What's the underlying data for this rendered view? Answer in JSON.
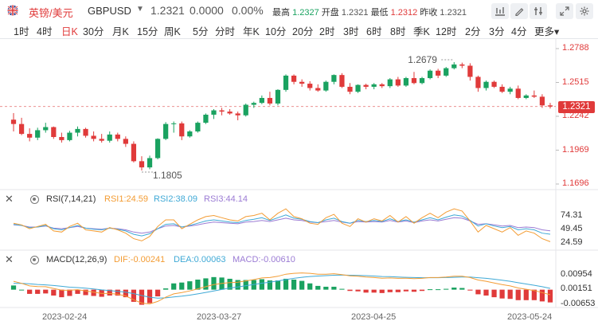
{
  "header": {
    "name": "英镑/美元",
    "code": "GBPUSD",
    "price": "1.2321",
    "change": "0.0000",
    "change_pct": "0.00%",
    "high_label": "最高",
    "high_value": "1.2327",
    "open_label": "开盘",
    "open_value": "1.2321",
    "low_label": "最低",
    "low_value": "1.2312",
    "prev_label": "昨收",
    "prev_value": "1.2321"
  },
  "tools": [
    "candle-type-icon",
    "draw-pen-icon",
    "compare-icon",
    "fullscreen-icon",
    "settings-icon"
  ],
  "periods": [
    "1时",
    "4时",
    "日K",
    "30分",
    "月K",
    "15分",
    "周K",
    "5分",
    "分时",
    "年K",
    "10分",
    "20分",
    "2时",
    "3时",
    "6时",
    "8时",
    "季K",
    "12时",
    "2分",
    "3分",
    "4分",
    "更多"
  ],
  "active_period": "日K",
  "price_axis": {
    "labels": [
      "1.2788",
      "1.2515",
      "1.2242",
      "1.1969",
      "1.1696"
    ],
    "current": "1.2321"
  },
  "annotations": {
    "high": "1.2679",
    "low": "1.1805"
  },
  "rsi": {
    "title": "RSI(7,14,21)",
    "rsi1": "RSI1:24.59",
    "rsi2": "RSI2:38.09",
    "rsi3": "RSI3:44.14",
    "axis": [
      "74.31",
      "49.45",
      "24.59"
    ]
  },
  "macd": {
    "title": "MACD(12,26,9)",
    "dif": "DIF:-0.00241",
    "dea": "DEA:0.00063",
    "macd": "MACD:-0.00610",
    "axis": [
      "0.00954",
      "0.00151",
      "-0.00653"
    ]
  },
  "dates": [
    "2023-02-24",
    "2023-03-27",
    "2023-04-25",
    "2023-05-24"
  ],
  "colors": {
    "up": "#e03a3a",
    "down": "#1aa260",
    "rsi1": "#f39c34",
    "rsi2": "#3fa9d6",
    "rsi3": "#9b7bd4",
    "dif": "#f39c34",
    "dea": "#3fa9d6"
  },
  "chart_data": {
    "type": "candlestick",
    "title": "",
    "xlabel": "",
    "ylabel": "",
    "ylim": [
      1.1696,
      1.2788
    ],
    "x_ticks": [
      "2023-02-24",
      "2023-03-27",
      "2023-04-25",
      "2023-05-24"
    ],
    "ohlc": [
      [
        1.2215,
        1.2268,
        1.212,
        1.218
      ],
      [
        1.218,
        1.223,
        1.209,
        1.21
      ],
      [
        1.21,
        1.2145,
        1.204,
        1.207
      ],
      [
        1.207,
        1.215,
        1.205,
        1.213
      ],
      [
        1.213,
        1.219,
        1.211,
        1.2155
      ],
      [
        1.2155,
        1.216,
        1.206,
        1.2075
      ],
      [
        1.2075,
        1.211,
        1.203,
        1.205
      ],
      [
        1.205,
        1.2125,
        1.204,
        1.211
      ],
      [
        1.211,
        1.216,
        1.208,
        1.214
      ],
      [
        1.214,
        1.215,
        1.207,
        1.2085
      ],
      [
        1.2085,
        1.212,
        1.204,
        1.206
      ],
      [
        1.206,
        1.21,
        1.203,
        1.2045
      ],
      [
        1.2045,
        1.212,
        1.203,
        1.2095
      ],
      [
        1.2095,
        1.211,
        1.204,
        1.206
      ],
      [
        1.206,
        1.208,
        1.1995,
        1.202
      ],
      [
        1.202,
        1.204,
        1.187,
        1.188
      ],
      [
        1.188,
        1.192,
        1.1805,
        1.183
      ],
      [
        1.183,
        1.1925,
        1.1815,
        1.1905
      ],
      [
        1.1905,
        1.2065,
        1.1895,
        1.206
      ],
      [
        1.206,
        1.2195,
        1.205,
        1.218
      ],
      [
        1.218,
        1.22,
        1.211,
        1.2185
      ],
      [
        1.2185,
        1.22,
        1.205,
        1.208
      ],
      [
        1.208,
        1.213,
        1.207,
        1.212
      ],
      [
        1.212,
        1.22,
        1.211,
        1.219
      ],
      [
        1.219,
        1.2265,
        1.218,
        1.2255
      ],
      [
        1.2255,
        1.23,
        1.222,
        1.229
      ],
      [
        1.229,
        1.231,
        1.225,
        1.228
      ],
      [
        1.228,
        1.23,
        1.2255,
        1.2265
      ],
      [
        1.2265,
        1.228,
        1.221,
        1.225
      ],
      [
        1.225,
        1.2345,
        1.224,
        1.2335
      ],
      [
        1.2335,
        1.236,
        1.231,
        1.235
      ],
      [
        1.235,
        1.241,
        1.234,
        1.239
      ],
      [
        1.239,
        1.244,
        1.233,
        1.2345
      ],
      [
        1.2345,
        1.246,
        1.233,
        1.2455
      ],
      [
        1.2455,
        1.258,
        1.244,
        1.257
      ],
      [
        1.257,
        1.258,
        1.25,
        1.252
      ],
      [
        1.252,
        1.254,
        1.248,
        1.2505
      ],
      [
        1.2505,
        1.2525,
        1.245,
        1.247
      ],
      [
        1.247,
        1.25,
        1.244,
        1.245
      ],
      [
        1.245,
        1.253,
        1.244,
        1.252
      ],
      [
        1.252,
        1.258,
        1.25,
        1.2575
      ],
      [
        1.2575,
        1.259,
        1.247,
        1.248
      ],
      [
        1.248,
        1.251,
        1.242,
        1.244
      ],
      [
        1.244,
        1.25,
        1.243,
        1.2495
      ],
      [
        1.2495,
        1.2505,
        1.246,
        1.248
      ],
      [
        1.248,
        1.251,
        1.246,
        1.25
      ],
      [
        1.25,
        1.251,
        1.247,
        1.2485
      ],
      [
        1.2485,
        1.255,
        1.247,
        1.254
      ],
      [
        1.254,
        1.256,
        1.248,
        1.249
      ],
      [
        1.249,
        1.256,
        1.248,
        1.255
      ],
      [
        1.255,
        1.26,
        1.25,
        1.251
      ],
      [
        1.251,
        1.256,
        1.25,
        1.255
      ],
      [
        1.255,
        1.262,
        1.254,
        1.261
      ],
      [
        1.261,
        1.2625,
        1.255,
        1.257
      ],
      [
        1.257,
        1.264,
        1.256,
        1.263
      ],
      [
        1.263,
        1.2679,
        1.262,
        1.266
      ],
      [
        1.266,
        1.2675,
        1.263,
        1.265
      ],
      [
        1.265,
        1.267,
        1.253,
        1.256
      ],
      [
        1.256,
        1.257,
        1.244,
        1.247
      ],
      [
        1.247,
        1.253,
        1.245,
        1.252
      ],
      [
        1.252,
        1.253,
        1.247,
        1.248
      ],
      [
        1.248,
        1.25,
        1.243,
        1.244
      ],
      [
        1.244,
        1.248,
        1.242,
        1.2465
      ],
      [
        1.2465,
        1.249,
        1.238,
        1.239
      ],
      [
        1.239,
        1.242,
        1.238,
        1.241
      ],
      [
        1.241,
        1.245,
        1.239,
        1.24
      ],
      [
        1.24,
        1.242,
        1.231,
        1.233
      ],
      [
        1.233,
        1.235,
        1.2305,
        1.2321
      ]
    ],
    "rsi1": [
      58,
      55,
      48,
      52,
      56,
      44,
      42,
      52,
      58,
      46,
      44,
      42,
      50,
      46,
      40,
      30,
      26,
      34,
      52,
      64,
      64,
      48,
      56,
      64,
      70,
      72,
      68,
      64,
      62,
      70,
      72,
      76,
      64,
      76,
      84,
      70,
      66,
      58,
      56,
      68,
      74,
      58,
      52,
      66,
      60,
      66,
      62,
      72,
      60,
      70,
      58,
      68,
      76,
      68,
      78,
      84,
      80,
      62,
      42,
      54,
      48,
      42,
      50,
      36,
      44,
      40,
      30,
      24.59
    ],
    "rsi2": [
      56,
      54,
      50,
      51,
      54,
      48,
      46,
      50,
      54,
      49,
      47,
      46,
      49,
      47,
      44,
      38,
      35,
      39,
      48,
      56,
      57,
      51,
      54,
      58,
      62,
      64,
      62,
      60,
      59,
      63,
      65,
      68,
      63,
      68,
      73,
      67,
      65,
      61,
      59,
      64,
      67,
      61,
      58,
      63,
      61,
      63,
      61,
      66,
      61,
      64,
      60,
      64,
      68,
      64,
      69,
      73,
      71,
      63,
      53,
      57,
      53,
      50,
      52,
      46,
      48,
      46,
      40,
      38.09
    ],
    "rsi3": [
      55,
      54,
      51,
      51,
      53,
      49,
      48,
      50,
      52,
      49,
      48,
      47,
      49,
      48,
      46,
      42,
      40,
      42,
      48,
      53,
      54,
      51,
      53,
      55,
      58,
      60,
      59,
      58,
      57,
      60,
      61,
      63,
      61,
      64,
      67,
      64,
      63,
      60,
      59,
      61,
      63,
      60,
      58,
      61,
      60,
      61,
      60,
      63,
      60,
      62,
      59,
      62,
      64,
      62,
      65,
      68,
      67,
      62,
      56,
      57,
      55,
      53,
      54,
      50,
      51,
      50,
      46,
      44.14
    ],
    "dif": [
      0.004,
      0.003,
      0.0018,
      0.0015,
      0.0014,
      0.0006,
      -0.0002,
      -0.0003,
      0.0,
      -0.0006,
      -0.0012,
      -0.0018,
      -0.0018,
      -0.0022,
      -0.003,
      -0.0048,
      -0.0064,
      -0.0068,
      -0.0056,
      -0.0036,
      -0.002,
      -0.0014,
      -0.0006,
      0.0004,
      0.0014,
      0.0024,
      0.003,
      0.0034,
      0.0036,
      0.0042,
      0.0048,
      0.0056,
      0.0058,
      0.0064,
      0.0074,
      0.0078,
      0.008,
      0.0078,
      0.0074,
      0.0074,
      0.0076,
      0.0072,
      0.0066,
      0.0064,
      0.006,
      0.0058,
      0.0055,
      0.0056,
      0.0054,
      0.0055,
      0.0053,
      0.0054,
      0.0058,
      0.0058,
      0.006,
      0.0064,
      0.0064,
      0.0058,
      0.0046,
      0.004,
      0.0032,
      0.0024,
      0.0018,
      0.0008,
      0.0002,
      -0.0004,
      -0.0014,
      -0.00241
    ],
    "dea": [
      0.003,
      0.003,
      0.0028,
      0.0025,
      0.0023,
      0.002,
      0.0016,
      0.0012,
      0.001,
      0.0007,
      0.0003,
      -0.0001,
      -0.0004,
      -0.0008,
      -0.0012,
      -0.0019,
      -0.0028,
      -0.0036,
      -0.004,
      -0.0039,
      -0.0035,
      -0.0031,
      -0.0026,
      -0.002,
      -0.0013,
      -0.0006,
      0.0001,
      0.0008,
      0.0013,
      0.0019,
      0.0025,
      0.0031,
      0.0036,
      0.0042,
      0.0048,
      0.0054,
      0.0059,
      0.0063,
      0.0065,
      0.0067,
      0.0069,
      0.007,
      0.0069,
      0.0068,
      0.0067,
      0.0065,
      0.0063,
      0.0062,
      0.006,
      0.0059,
      0.0058,
      0.0057,
      0.0057,
      0.0057,
      0.0058,
      0.0059,
      0.006,
      0.006,
      0.0057,
      0.0054,
      0.005,
      0.0045,
      0.004,
      0.0033,
      0.0027,
      0.0021,
      0.0014,
      0.00063
    ]
  }
}
